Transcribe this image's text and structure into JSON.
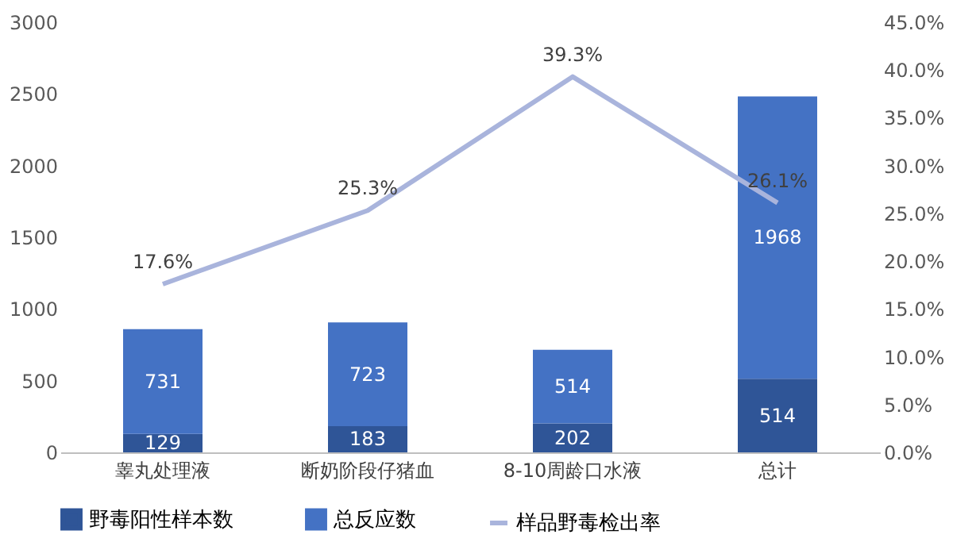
{
  "chart_data": {
    "type": "bar",
    "stacked": true,
    "categories": [
      "睾丸处理液",
      "断奶阶段仔猪血",
      "8-10周龄口水液",
      "总计"
    ],
    "series": [
      {
        "name": "野毒阳性样本数",
        "color": "#2f5597",
        "values": [
          129,
          183,
          202,
          514
        ]
      },
      {
        "name": "总反应数",
        "color": "#4472c4",
        "values": [
          731,
          723,
          514,
          1968
        ]
      },
      {
        "name": "样品野毒检出率",
        "color": "#a9b4dc",
        "type": "line",
        "axis": "y2",
        "values": [
          17.6,
          25.3,
          39.3,
          26.1
        ],
        "value_labels": [
          "17.6%",
          "25.3%",
          "39.3%",
          "26.1%"
        ]
      }
    ],
    "data_labels": true,
    "legend": "bottom",
    "ylim": [
      0,
      3000
    ],
    "yticks": [
      0,
      500,
      1000,
      1500,
      2000,
      2500,
      3000
    ],
    "y2lim": [
      0,
      45
    ],
    "y2ticks": [
      {
        "value": 0,
        "label": "0.0%"
      },
      {
        "value": 5,
        "label": "5.0%"
      },
      {
        "value": 10,
        "label": "10.0%"
      },
      {
        "value": 15,
        "label": "15.0%"
      },
      {
        "value": 20,
        "label": "20.0%"
      },
      {
        "value": 25,
        "label": "25.0%"
      },
      {
        "value": 30,
        "label": "30.0%"
      },
      {
        "value": 35,
        "label": "35.0%"
      },
      {
        "value": 40,
        "label": "40.0%"
      },
      {
        "value": 45,
        "label": "45.0%"
      }
    ]
  }
}
